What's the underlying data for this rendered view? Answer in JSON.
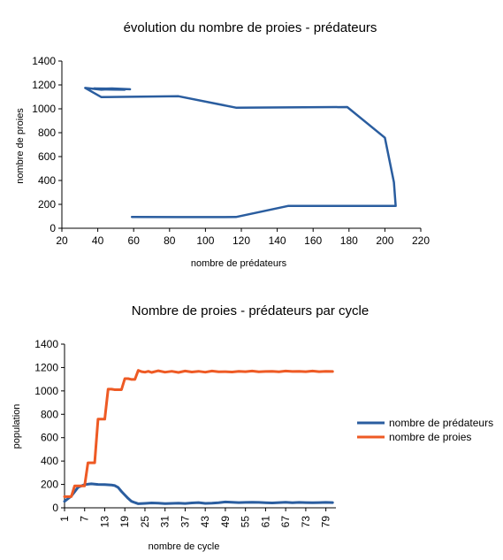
{
  "chart_data": [
    {
      "type": "line",
      "title": "évolution du nombre de proies - prédateurs",
      "xlabel": "nombre de prédateurs",
      "ylabel": "nombre de proies",
      "xlim": [
        20,
        220
      ],
      "ylim": [
        0,
        1400
      ],
      "x_ticks": [
        20,
        40,
        60,
        80,
        100,
        120,
        140,
        160,
        180,
        200,
        220
      ],
      "y_ticks": [
        0,
        200,
        400,
        600,
        800,
        1000,
        1200,
        1400
      ],
      "grid": false,
      "series": [
        {
          "color": "#2a5d9f",
          "points": [
            [
              59,
              95
            ],
            [
              85,
              93
            ],
            [
              117,
              94
            ],
            [
              146,
              187
            ],
            [
              180,
              187
            ],
            [
              206,
              187
            ],
            [
              205,
              385
            ],
            [
              200,
              758
            ],
            [
              179,
              1015
            ],
            [
              117,
              1010
            ],
            [
              85,
              1105
            ],
            [
              42,
              1098
            ],
            [
              33,
              1175
            ],
            [
              42,
              1160
            ],
            [
              50,
              1168
            ],
            [
              38,
              1170
            ],
            [
              45,
              1162
            ],
            [
              55,
              1160
            ],
            [
              40,
              1166
            ],
            [
              48,
              1170
            ],
            [
              58,
              1164
            ]
          ]
        }
      ]
    },
    {
      "type": "line",
      "title": "Nombre de proies - prédateurs par cycle",
      "xlabel": "nombre de cycle",
      "ylabel": "population",
      "xlim": [
        1,
        82
      ],
      "ylim": [
        0,
        1400
      ],
      "x_ticks": [
        1,
        7,
        13,
        19,
        25,
        31,
        37,
        43,
        49,
        55,
        61,
        67,
        73,
        79
      ],
      "y_ticks": [
        0,
        200,
        400,
        600,
        800,
        1000,
        1200,
        1400
      ],
      "grid": false,
      "legend": "right",
      "series": [
        {
          "name": "nombre de prédateurs",
          "color": "#2a5d9f",
          "x": [
            1,
            3,
            5,
            7,
            9,
            11,
            13,
            15,
            16,
            17,
            18,
            19,
            20,
            21,
            22,
            23,
            25,
            27,
            29,
            31,
            33,
            35,
            37,
            39,
            41,
            43,
            45,
            47,
            49,
            51,
            53,
            55,
            57,
            59,
            61,
            63,
            65,
            67,
            69,
            71,
            73,
            75,
            77,
            79,
            81
          ],
          "y": [
            55,
            100,
            175,
            198,
            205,
            200,
            198,
            195,
            190,
            175,
            140,
            110,
            80,
            55,
            45,
            35,
            38,
            42,
            40,
            36,
            38,
            40,
            37,
            42,
            45,
            38,
            40,
            44,
            50,
            48,
            45,
            46,
            48,
            46,
            44,
            42,
            45,
            48,
            44,
            46,
            45,
            44,
            45,
            46,
            45
          ]
        },
        {
          "name": "nombre de proies",
          "color": "#ee5a24",
          "x": [
            1,
            2,
            3,
            4,
            5,
            6,
            7,
            8,
            9,
            10,
            11,
            12,
            13,
            14,
            15,
            16,
            17,
            18,
            19,
            20,
            21,
            22,
            23,
            24,
            25,
            26,
            27,
            29,
            31,
            33,
            35,
            37,
            39,
            41,
            43,
            45,
            47,
            49,
            51,
            53,
            55,
            57,
            59,
            61,
            63,
            65,
            67,
            69,
            71,
            73,
            75,
            77,
            79,
            81
          ],
          "y": [
            95,
            95,
            95,
            187,
            187,
            187,
            187,
            385,
            385,
            385,
            758,
            758,
            758,
            1015,
            1015,
            1010,
            1010,
            1010,
            1105,
            1105,
            1098,
            1098,
            1175,
            1165,
            1160,
            1168,
            1158,
            1172,
            1160,
            1168,
            1158,
            1170,
            1162,
            1168,
            1160,
            1170,
            1164,
            1165,
            1162,
            1168,
            1165,
            1170,
            1163,
            1166,
            1168,
            1164,
            1170,
            1166,
            1168,
            1165,
            1170,
            1165,
            1168,
            1166
          ]
        }
      ]
    }
  ]
}
